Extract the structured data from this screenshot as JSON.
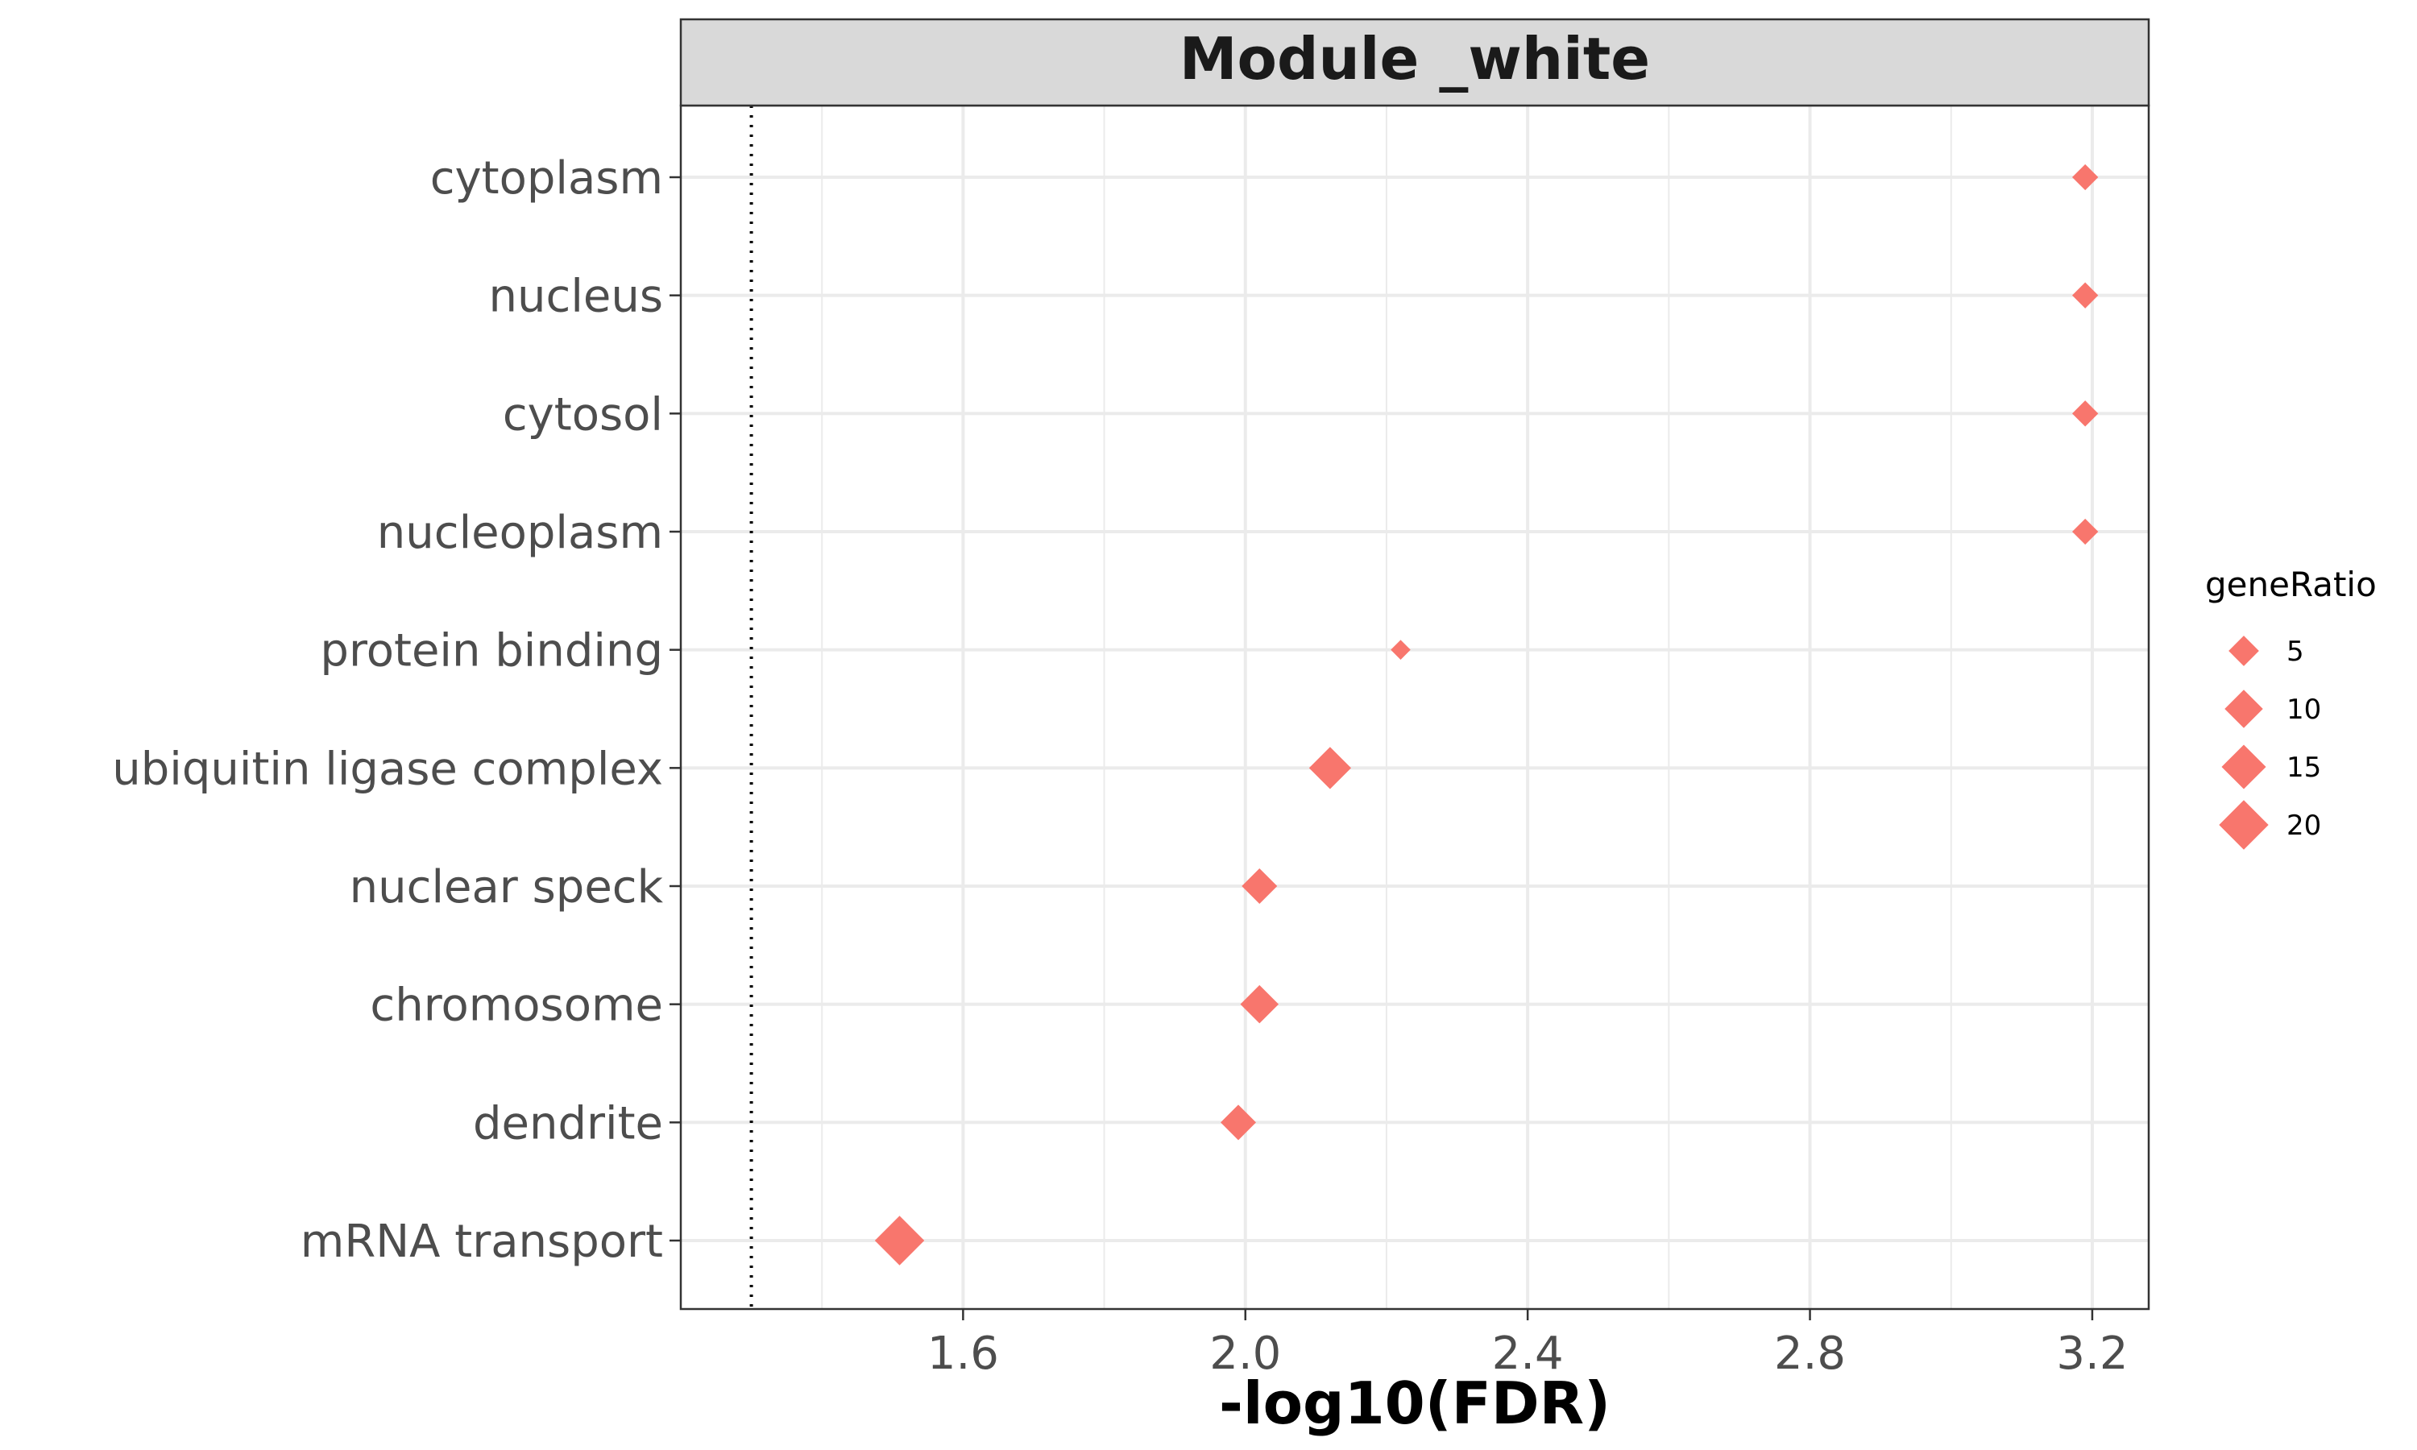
{
  "chart_data": {
    "type": "scatter",
    "title": "Module _white",
    "xlabel": "-log10(FDR)",
    "ylabel": "",
    "xlim": [
      1.2,
      3.28
    ],
    "xticks": [
      "1.6",
      "2.0",
      "2.4",
      "2.8",
      "3.2"
    ],
    "x_minor_gridlines": [
      1.4,
      1.8,
      2.2,
      2.6,
      3.0
    ],
    "reference_line": {
      "x": 1.3,
      "style": "dotted"
    },
    "grid": true,
    "marker": "diamond",
    "color": "#F8766D",
    "categories": [
      "cytoplasm",
      "nucleus",
      "cytosol",
      "nucleoplasm",
      "protein binding",
      "ubiquitin ligase complex",
      "nuclear speck",
      "chromosome",
      "dendrite",
      "mRNA transport"
    ],
    "points": [
      {
        "term": "cytoplasm",
        "x": 3.19,
        "geneRatio": 3
      },
      {
        "term": "nucleus",
        "x": 3.19,
        "geneRatio": 3
      },
      {
        "term": "cytosol",
        "x": 3.19,
        "geneRatio": 3
      },
      {
        "term": "nucleoplasm",
        "x": 3.19,
        "geneRatio": 3
      },
      {
        "term": "protein binding",
        "x": 2.22,
        "geneRatio": 1
      },
      {
        "term": "ubiquitin ligase complex",
        "x": 2.12,
        "geneRatio": 13
      },
      {
        "term": "nuclear speck",
        "x": 2.02,
        "geneRatio": 8
      },
      {
        "term": "chromosome",
        "x": 2.02,
        "geneRatio": 10
      },
      {
        "term": "dendrite",
        "x": 1.99,
        "geneRatio": 8
      },
      {
        "term": "mRNA transport",
        "x": 1.51,
        "geneRatio": 20
      }
    ],
    "legend": {
      "title": "geneRatio",
      "position": "right",
      "entries": [
        {
          "label": "5",
          "value": 5
        },
        {
          "label": "10",
          "value": 10
        },
        {
          "label": "15",
          "value": 15
        },
        {
          "label": "20",
          "value": 20
        }
      ]
    }
  }
}
